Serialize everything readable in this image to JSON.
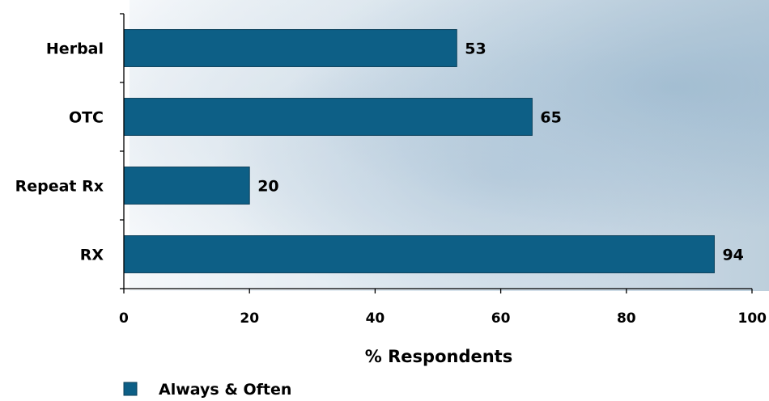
{
  "chart_data": {
    "type": "bar",
    "orientation": "horizontal",
    "categories": [
      "Herbal",
      "OTC",
      "Repeat Rx",
      "RX"
    ],
    "series": [
      {
        "name": "Always & Often",
        "values": [
          53,
          65,
          20,
          94
        ]
      }
    ],
    "data_labels": [
      "53",
      "65",
      "20",
      "94"
    ],
    "xlabel": "% Respondents",
    "ylabel": "",
    "xlim": [
      0,
      100
    ],
    "xticks": [
      0,
      20,
      40,
      60,
      80,
      100
    ],
    "xtick_labels": [
      "0",
      "20",
      "40",
      "60",
      "80",
      "100"
    ],
    "grid": false,
    "legend": {
      "position": "bottom-left",
      "entries": [
        "Always & Often"
      ]
    },
    "colors": {
      "bar": "#0d5f86",
      "bar_stroke": "#0a3f5a"
    }
  }
}
